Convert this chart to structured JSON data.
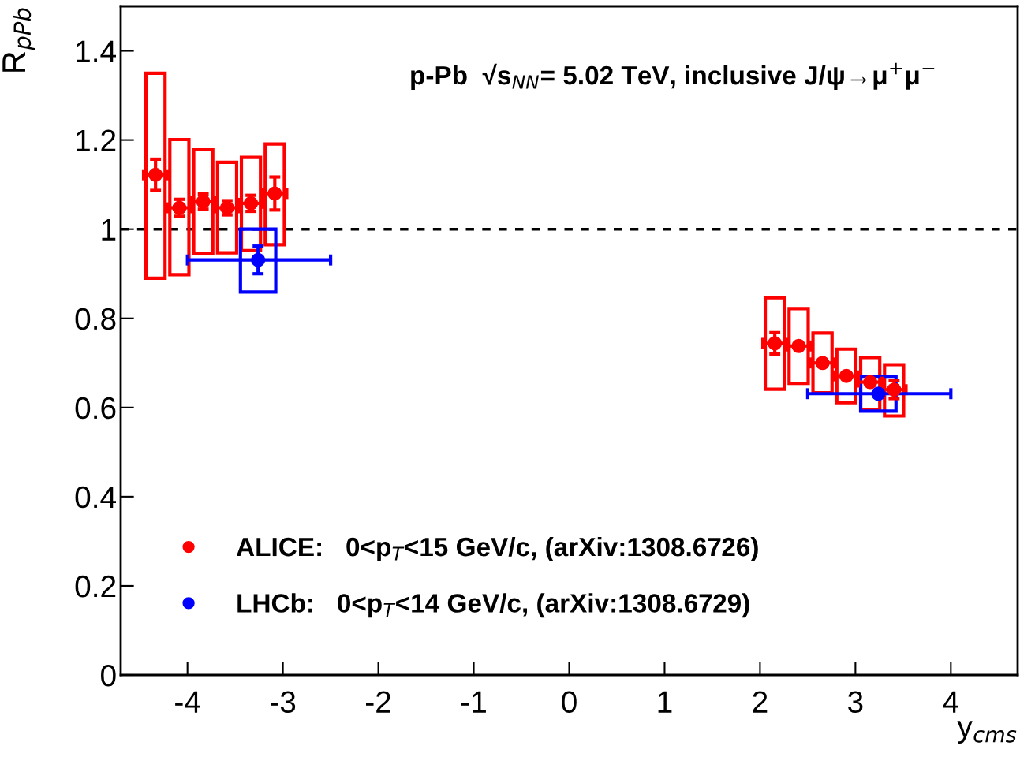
{
  "chart_data": {
    "type": "scatter",
    "title": "p-Pb  √s$_{NN}$= 5.02 TeV, inclusive J/ψ→μ$^{+}$μ$^{−}$",
    "xlabel": "y$_{cms}$",
    "ylabel": "R$_{pPb}$",
    "xlim": [
      -4.7,
      4.7
    ],
    "xticks": [
      -4,
      -3,
      -2,
      -1,
      0,
      1,
      2,
      3,
      4
    ],
    "ylim": [
      0,
      1.5
    ],
    "yticks": [
      0,
      0.2,
      0.4,
      0.6,
      0.8,
      1,
      1.2,
      1.4
    ],
    "ref_lines": [
      {
        "axis": "y",
        "value": 1,
        "color": "#000000",
        "line_style": "dashed"
      }
    ],
    "legend": "bottom left",
    "marker": "circle",
    "grid": false,
    "series": [
      {
        "type": "bar",
        "color": "#ff0000",
        "x": [
          -4.335,
          -4.085,
          -3.835,
          -3.585,
          -3.335,
          -3.085,
          2.155,
          2.405,
          2.655,
          2.905,
          3.155,
          3.405
        ],
        "base": [
          0.89,
          0.898,
          0.945,
          0.947,
          0.952,
          0.965,
          0.641,
          0.654,
          0.633,
          0.611,
          0.595,
          0.581
        ],
        "values": [
          0.46,
          0.303,
          0.233,
          0.203,
          0.209,
          0.226,
          0.205,
          0.168,
          0.134,
          0.12,
          0.117,
          0.115
        ]
      },
      {
        "type": "bar",
        "color": "#0000ff",
        "x": [
          -3.26,
          3.24
        ],
        "base": [
          0.859,
          0.592
        ],
        "values": [
          0.141,
          0.078
        ]
      },
      {
        "type": "scatter",
        "name": "ALICE:   0<p$_{T}$<15 GeV/c, (arXiv:1308.6726)",
        "color": "#ff0000",
        "x": [
          -4.335,
          -4.085,
          -3.835,
          -3.585,
          -3.335,
          -3.085,
          2.155,
          2.405,
          2.655,
          2.905,
          3.155,
          3.405
        ],
        "values": [
          1.122,
          1.048,
          1.062,
          1.048,
          1.058,
          1.08,
          0.744,
          0.738,
          0.7,
          0.671,
          0.657,
          0.64
        ],
        "errors": [
          0.035,
          0.019,
          0.017,
          0.016,
          0.018,
          0.037,
          0.024,
          null,
          null,
          null,
          null,
          0.02
        ],
        "xerrors": [
          0.125,
          0.125,
          0.125,
          0.125,
          0.125,
          0.125,
          0.125,
          0.125,
          0.125,
          0.125,
          0.125,
          0.125
        ]
      },
      {
        "type": "scatter",
        "name": "LHCb:   0<p$_{T}$<14 GeV/c, (arXiv:1308.6729)",
        "color": "#0000ff",
        "x": [
          -3.26,
          3.24
        ],
        "values": [
          0.931,
          0.631
        ],
        "errors": [
          0.031,
          null
        ],
        "xerrors": [
          [
            -4.0,
            -2.5
          ],
          [
            2.5,
            4.0
          ]
        ]
      }
    ]
  }
}
